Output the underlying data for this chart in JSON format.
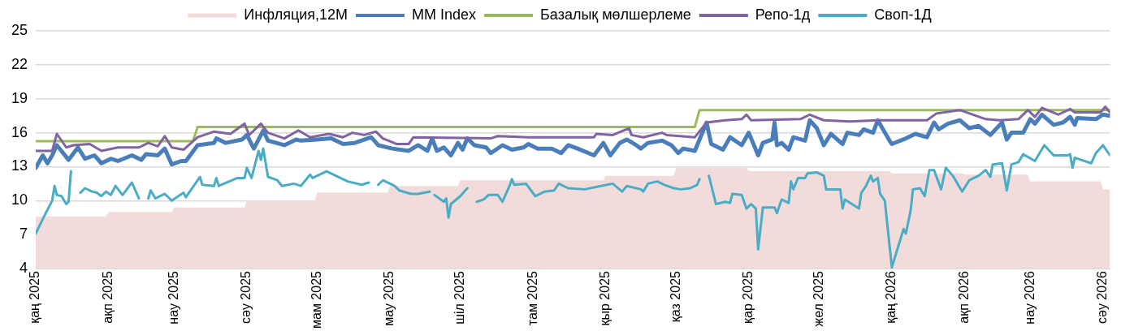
{
  "chart_data": {
    "type": "line",
    "legend": "top",
    "grid": "y",
    "line_style": "solid",
    "marker": "none",
    "xlim": [
      "2025-01-01",
      "2026-04-04"
    ],
    "xticks": [
      {
        "value": "2025-01-01",
        "label": "қаң 2025"
      },
      {
        "value": "2025-02-01",
        "label": "ақп 2025"
      },
      {
        "value": "2025-03-01",
        "label": "нау 2025"
      },
      {
        "value": "2025-04-01",
        "label": "сәу 2025"
      },
      {
        "value": "2025-05-01",
        "label": "мам 2025"
      },
      {
        "value": "2025-06-01",
        "label": "мау 2025"
      },
      {
        "value": "2025-07-01",
        "label": "шіл 2025"
      },
      {
        "value": "2025-08-01",
        "label": "там 2025"
      },
      {
        "value": "2025-09-01",
        "label": "қыр 2025"
      },
      {
        "value": "2025-10-01",
        "label": "қаз 2025"
      },
      {
        "value": "2025-11-01",
        "label": "қар 2025"
      },
      {
        "value": "2025-12-01",
        "label": "жел 2025"
      },
      {
        "value": "2026-01-01",
        "label": "қаң 2026"
      },
      {
        "value": "2026-02-01",
        "label": "ақп 2026"
      },
      {
        "value": "2026-03-01",
        "label": "нау 2026"
      },
      {
        "value": "2026-04-01",
        "label": "сәу 2026"
      }
    ],
    "ylim": [
      4,
      25
    ],
    "yticks": [
      4,
      7,
      10,
      13,
      16,
      19,
      22,
      25
    ],
    "series": [
      {
        "name": "Инфляция,12М",
        "type": "area",
        "color": "#f2dcdb",
        "x": [
          "2025-01-01",
          "2025-01-31",
          "2025-02-01",
          "2025-02-28",
          "2025-03-01",
          "2025-03-31",
          "2025-04-01",
          "2025-04-30",
          "2025-05-01",
          "2025-05-31",
          "2025-06-01",
          "2025-06-30",
          "2025-07-01",
          "2025-08-31",
          "2025-09-01",
          "2025-09-30",
          "2025-10-01",
          "2025-10-31",
          "2025-11-01",
          "2025-12-31",
          "2026-01-01",
          "2026-01-31",
          "2026-02-01",
          "2026-02-28",
          "2026-03-01",
          "2026-03-31",
          "2026-04-01",
          "2026-04-04"
        ],
        "values": [
          8.6,
          8.6,
          9.0,
          9.0,
          9.4,
          9.4,
          10.0,
          10.0,
          10.7,
          10.7,
          11.3,
          11.3,
          11.8,
          11.8,
          12.2,
          12.2,
          12.9,
          12.9,
          12.6,
          12.6,
          12.4,
          12.4,
          12.3,
          12.3,
          11.7,
          11.7,
          11.0,
          11.0
        ]
      },
      {
        "name": "MM Index",
        "type": "line",
        "color": "#4a7ebb",
        "x": [
          "2025-01-01",
          "2025-01-04",
          "2025-01-06",
          "2025-01-08",
          "2025-01-10",
          "2025-01-15",
          "2025-01-19",
          "2025-01-22",
          "2025-01-26",
          "2025-01-29",
          "2025-02-02",
          "2025-02-05",
          "2025-02-11",
          "2025-02-15",
          "2025-02-17",
          "2025-02-22",
          "2025-02-25",
          "2025-02-28",
          "2025-03-04",
          "2025-03-06",
          "2025-03-11",
          "2025-03-18",
          "2025-03-19",
          "2025-03-23",
          "2025-03-30",
          "2025-04-01",
          "2025-04-04",
          "2025-04-08",
          "2025-04-10",
          "2025-04-17",
          "2025-04-22",
          "2025-04-24",
          "2025-05-01",
          "2025-05-07",
          "2025-05-12",
          "2025-05-17",
          "2025-05-24",
          "2025-05-27",
          "2025-06-02",
          "2025-06-09",
          "2025-06-13",
          "2025-06-17",
          "2025-06-19",
          "2025-06-21",
          "2025-06-24",
          "2025-06-27",
          "2025-06-30",
          "2025-07-02",
          "2025-07-04",
          "2025-07-07",
          "2025-07-12",
          "2025-07-14",
          "2025-07-19",
          "2025-07-23",
          "2025-07-28",
          "2025-07-30",
          "2025-08-03",
          "2025-08-09",
          "2025-08-13",
          "2025-08-16",
          "2025-08-20",
          "2025-08-27",
          "2025-08-31",
          "2025-09-03",
          "2025-09-07",
          "2025-09-10",
          "2025-09-14",
          "2025-09-16",
          "2025-09-19",
          "2025-09-25",
          "2025-09-29",
          "2025-10-02",
          "2025-10-04",
          "2025-10-09",
          "2025-10-14",
          "2025-10-16",
          "2025-10-21",
          "2025-10-24",
          "2025-10-29",
          "2025-11-01",
          "2025-11-05",
          "2025-11-07",
          "2025-11-11",
          "2025-11-12",
          "2025-11-13",
          "2025-11-15",
          "2025-11-18",
          "2025-11-20",
          "2025-11-25",
          "2025-11-27",
          "2025-11-30",
          "2025-12-03",
          "2025-12-06",
          "2025-12-11",
          "2025-12-13",
          "2025-12-18",
          "2025-12-20",
          "2025-12-24",
          "2025-12-26",
          "2025-12-31",
          "2026-01-01",
          "2026-01-07",
          "2026-01-11",
          "2026-01-16",
          "2026-01-19",
          "2026-01-21",
          "2026-01-25",
          "2026-01-30",
          "2026-02-03",
          "2026-02-07",
          "2026-02-12",
          "2026-02-17",
          "2026-02-19",
          "2026-02-21",
          "2026-02-26",
          "2026-03-01",
          "2026-03-03",
          "2026-03-06",
          "2026-03-11",
          "2026-03-15",
          "2026-03-18",
          "2026-03-20",
          "2026-03-21",
          "2026-03-29",
          "2026-04-01",
          "2026-04-04"
        ],
        "values": [
          12.9,
          14.0,
          13.3,
          14.0,
          14.9,
          13.6,
          14.7,
          13.7,
          14.0,
          13.3,
          13.7,
          13.5,
          14.0,
          13.6,
          14.1,
          14.0,
          14.6,
          13.2,
          13.5,
          13.5,
          14.9,
          15.1,
          15.5,
          15.1,
          15.4,
          15.8,
          14.6,
          16.2,
          15.3,
          14.9,
          15.4,
          15.3,
          15.4,
          15.5,
          15.0,
          15.1,
          15.6,
          14.9,
          14.6,
          14.4,
          14.9,
          14.4,
          15.5,
          14.4,
          14.7,
          14.0,
          15.1,
          14.5,
          15.5,
          14.9,
          14.7,
          14.2,
          14.9,
          14.5,
          14.7,
          15.0,
          14.6,
          14.6,
          14.2,
          14.9,
          14.6,
          14.0,
          15.1,
          14.0,
          15.1,
          15.4,
          14.9,
          14.6,
          15.1,
          15.3,
          14.9,
          14.2,
          14.6,
          14.4,
          16.9,
          15.0,
          14.5,
          15.6,
          14.9,
          16.0,
          14.0,
          15.1,
          15.4,
          16.9,
          14.9,
          15.1,
          14.5,
          15.6,
          15.3,
          17.1,
          16.4,
          14.9,
          15.9,
          15.0,
          16.0,
          15.8,
          16.3,
          16.0,
          17.1,
          15.3,
          15.0,
          15.5,
          15.9,
          15.6,
          16.9,
          16.3,
          16.8,
          17.1,
          16.4,
          16.6,
          15.8,
          16.9,
          15.4,
          16.0,
          16.0,
          17.2,
          16.8,
          17.6,
          16.7,
          16.9,
          17.4,
          16.7,
          17.3,
          17.2,
          17.6,
          17.5
        ]
      },
      {
        "name": "Базалық мөлшерлеме",
        "type": "line",
        "color": "#9bbb59",
        "x": [
          "2025-01-01",
          "2025-03-09",
          "2025-03-11",
          "2025-10-09",
          "2025-10-11",
          "2026-04-04"
        ],
        "values": [
          15.25,
          15.25,
          16.5,
          16.5,
          18,
          18
        ]
      },
      {
        "name": "Репо-1д",
        "type": "line",
        "color": "#8064a2",
        "x": [
          "2025-01-01",
          "2025-01-08",
          "2025-01-10",
          "2025-01-14",
          "2025-01-17",
          "2025-01-24",
          "2025-01-29",
          "2025-02-05",
          "2025-02-14",
          "2025-02-18",
          "2025-02-22",
          "2025-02-25",
          "2025-02-28",
          "2025-03-05",
          "2025-03-11",
          "2025-03-18",
          "2025-03-25",
          "2025-03-31",
          "2025-04-02",
          "2025-04-07",
          "2025-04-10",
          "2025-04-17",
          "2025-04-23",
          "2025-04-28",
          "2025-05-06",
          "2025-05-12",
          "2025-05-16",
          "2025-05-21",
          "2025-05-26",
          "2025-05-29",
          "2025-06-04",
          "2025-06-09",
          "2025-06-11",
          "2025-07-14",
          "2025-07-17",
          "2025-07-30",
          "2025-08-27",
          "2025-08-28",
          "2025-09-04",
          "2025-09-11",
          "2025-09-12",
          "2025-09-17",
          "2025-09-25",
          "2025-09-27",
          "2025-10-09",
          "2025-10-14",
          "2025-10-22",
          "2025-10-29",
          "2025-10-31",
          "2025-11-02",
          "2025-11-23",
          "2025-11-27",
          "2025-12-03",
          "2025-12-14",
          "2025-12-26",
          "2026-01-16",
          "2026-01-20",
          "2026-01-30",
          "2026-02-10",
          "2026-02-16",
          "2026-02-24",
          "2026-02-28",
          "2026-03-03",
          "2026-03-06",
          "2026-03-13",
          "2026-03-18",
          "2026-03-20",
          "2026-03-31",
          "2026-04-02",
          "2026-04-04"
        ],
        "values": [
          14.4,
          14.4,
          15.9,
          14.7,
          14.9,
          15.0,
          14.4,
          14.7,
          14.7,
          15.1,
          14.8,
          15.7,
          14.7,
          14.5,
          15.6,
          16.1,
          15.9,
          16.8,
          15.8,
          16.8,
          16.0,
          15.5,
          16.2,
          15.6,
          15.9,
          15.6,
          16.0,
          15.8,
          16.1,
          15.5,
          15.0,
          15.0,
          15.6,
          15.5,
          15.7,
          15.6,
          15.6,
          15.9,
          15.8,
          16.4,
          15.8,
          15.6,
          16.0,
          15.8,
          15.6,
          16.9,
          17.1,
          17.2,
          17.6,
          17.1,
          17.2,
          17.6,
          17.1,
          17.0,
          17.1,
          17.1,
          17.7,
          18.0,
          17.2,
          17.1,
          17.2,
          18.0,
          17.4,
          18.2,
          17.6,
          18.1,
          17.8,
          17.8,
          18.3,
          17.8
        ]
      },
      {
        "name": "Своп-1Д",
        "type": "line",
        "color": "#4bacc6",
        "x": [
          "2025-01-01",
          "2025-01-05",
          "2025-01-08",
          "2025-01-09",
          "2025-01-10",
          "2025-01-12",
          "2025-01-14",
          "2025-01-15",
          "2025-01-16",
          "2025-01-18",
          "2025-01-20",
          "2025-01-22",
          "2025-01-25",
          "2025-01-27",
          "2025-01-29",
          "2025-01-31",
          "2025-02-02",
          "2025-02-04",
          "2025-02-07",
          "2025-02-11",
          "2025-02-14",
          "2025-02-16",
          "2025-02-18",
          "2025-02-19",
          "2025-02-21",
          "2025-02-25",
          "2025-02-28",
          "2025-03-05",
          "2025-03-06",
          "2025-03-12",
          "2025-03-13",
          "2025-03-18",
          "2025-03-19",
          "2025-03-20",
          "2025-03-28",
          "2025-03-31",
          "2025-04-01",
          "2025-04-03",
          "2025-04-06",
          "2025-04-07",
          "2025-04-08",
          "2025-04-10",
          "2025-04-14",
          "2025-04-16",
          "2025-04-21",
          "2025-04-24",
          "2025-04-28",
          "2025-04-29",
          "2025-05-05",
          "2025-05-12",
          "2025-05-14",
          "2025-05-20",
          "2025-05-23",
          "2025-05-25",
          "2025-05-27",
          "2025-05-29",
          "2025-06-03",
          "2025-06-05",
          "2025-06-10",
          "2025-06-13",
          "2025-06-18",
          "2025-06-19",
          "2025-06-20",
          "2025-06-24",
          "2025-06-25",
          "2025-06-26",
          "2025-06-27",
          "2025-07-01",
          "2025-07-04",
          "2025-07-06",
          "2025-07-08",
          "2025-07-11",
          "2025-07-13",
          "2025-07-17",
          "2025-07-19",
          "2025-07-22",
          "2025-07-23",
          "2025-07-24",
          "2025-07-29",
          "2025-08-02",
          "2025-08-06",
          "2025-08-10",
          "2025-08-12",
          "2025-08-16",
          "2025-08-23",
          "2025-08-30",
          "2025-09-04",
          "2025-09-08",
          "2025-09-10",
          "2025-09-16",
          "2025-09-17",
          "2025-09-19",
          "2025-09-23",
          "2025-09-26",
          "2025-09-30",
          "2025-10-03",
          "2025-10-07",
          "2025-10-10",
          "2025-10-11",
          "2025-10-13",
          "2025-10-15",
          "2025-10-18",
          "2025-10-22",
          "2025-10-24",
          "2025-10-25",
          "2025-10-29",
          "2025-10-31",
          "2025-11-02",
          "2025-11-04",
          "2025-11-05",
          "2025-11-07",
          "2025-11-12",
          "2025-11-13",
          "2025-11-15",
          "2025-11-18",
          "2025-11-19",
          "2025-11-20",
          "2025-11-22",
          "2025-11-25",
          "2025-11-26",
          "2025-11-30",
          "2025-12-03",
          "2025-12-04",
          "2025-12-10",
          "2025-12-11",
          "2025-12-12",
          "2025-12-18",
          "2025-12-19",
          "2025-12-21",
          "2025-12-23",
          "2025-12-24",
          "2025-12-26",
          "2025-12-27",
          "2025-12-29",
          "2026-01-01",
          "2026-01-06",
          "2026-01-07",
          "2026-01-09",
          "2026-01-10",
          "2026-01-13",
          "2026-01-15",
          "2026-01-17",
          "2026-01-19",
          "2026-01-22",
          "2026-01-24",
          "2026-01-27",
          "2026-01-31",
          "2026-02-03",
          "2026-02-07",
          "2026-02-10",
          "2026-02-12",
          "2026-02-13",
          "2026-02-17",
          "2026-02-19",
          "2026-02-21",
          "2026-02-24",
          "2026-02-26",
          "2026-03-03",
          "2026-03-07",
          "2026-03-11",
          "2026-03-17",
          "2026-03-18",
          "2026-03-19",
          "2026-03-20",
          "2026-03-27",
          "2026-03-29",
          "2026-04-01",
          "2026-04-04"
        ],
        "values": [
          7.1,
          8.8,
          10.0,
          11.3,
          10.5,
          10.4,
          9.7,
          9.9,
          12.6,
          null,
          10.7,
          11.1,
          10.8,
          10.7,
          10.4,
          10.8,
          10.5,
          11.3,
          10.5,
          11.6,
          10.2,
          null,
          10.2,
          10.9,
          10.2,
          10.6,
          10.0,
          10.7,
          10.3,
          12.1,
          11.4,
          11.3,
          12.0,
          11.3,
          12.0,
          12.0,
          12.9,
          12.0,
          14.4,
          13.6,
          14.6,
          12.1,
          11.8,
          11.3,
          11.5,
          11.3,
          12.3,
          12.0,
          12.6,
          11.9,
          11.7,
          11.4,
          11.6,
          null,
          11.4,
          11.8,
          11.3,
          10.9,
          10.6,
          10.6,
          10.8,
          null,
          10.5,
          9.9,
          10.2,
          8.5,
          9.7,
          10.4,
          11.1,
          null,
          9.9,
          10.1,
          10.5,
          10.5,
          9.9,
          11.3,
          11.9,
          11.4,
          11.5,
          10.4,
          10.8,
          10.9,
          11.5,
          11.1,
          11.0,
          11.3,
          11.5,
          10.8,
          11.3,
          11.0,
          10.8,
          11.5,
          11.7,
          11.4,
          11.1,
          11.0,
          11.1,
          11.4,
          11.9,
          null,
          12.2,
          9.7,
          9.9,
          9.8,
          10.6,
          10.5,
          9.3,
          9.7,
          9.3,
          5.7,
          9.4,
          9.4,
          8.9,
          10.1,
          9.8,
          11.7,
          11.0,
          12.0,
          12.0,
          12.4,
          12.5,
          12.2,
          11.0,
          11.0,
          9.3,
          10.1,
          9.3,
          10.7,
          11.3,
          12.2,
          11.7,
          12.0,
          10.6,
          10.0,
          4.1,
          7.5,
          7.1,
          9.1,
          11.0,
          11.1,
          10.4,
          12.7,
          12.7,
          11.0,
          12.9,
          12.2,
          10.8,
          11.8,
          12.2,
          12.7,
          12.1,
          13.2,
          13.3,
          10.9,
          13.2,
          13.4,
          14.1,
          13.5,
          14.9,
          14.0,
          14.0,
          14.1,
          12.9,
          13.8,
          13.3,
          14.2,
          14.9,
          14.0
        ]
      }
    ]
  }
}
